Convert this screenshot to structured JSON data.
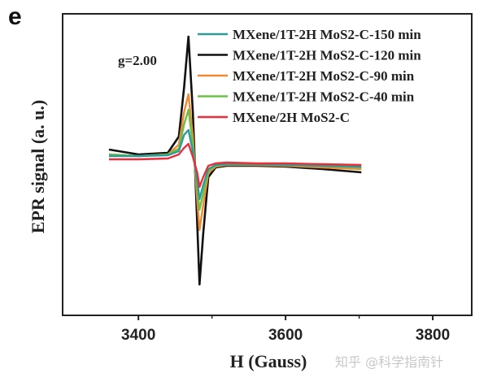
{
  "panel_label": "e",
  "watermark": "知乎 @科学指南针",
  "chart_data": {
    "type": "line",
    "title": "",
    "xlabel": "H (Gauss)",
    "ylabel": "EPR signal (a. u.)",
    "xlim": [
      3297,
      3853
    ],
    "ylim": [
      -190,
      181
    ],
    "xticks": [
      3400,
      3600,
      3800
    ],
    "xminor": [
      3500,
      3700
    ],
    "yticks_shown": false,
    "grid": false,
    "legend_position": "top-right",
    "annotation": "g=2.00",
    "x": [
      3360,
      3400,
      3440,
      3455,
      3462,
      3468,
      3474,
      3480,
      3483,
      3488,
      3495,
      3505,
      3520,
      3560,
      3600,
      3650,
      3703
    ],
    "series": [
      {
        "name": "MXene/1T-2H MoS2-C-150 min",
        "color": "#2e9a9a",
        "values": [
          6,
          6,
          7,
          12,
          32,
          38,
          12,
          -25,
          -47,
          -30,
          -10,
          -5,
          -4,
          -4,
          -5,
          -6,
          -7
        ]
      },
      {
        "name": "MXene/1T-2H MoS2-C-120 min",
        "color": "#111111",
        "values": [
          14,
          8,
          10,
          30,
          90,
          153,
          60,
          -80,
          -152,
          -90,
          -20,
          -8,
          -6,
          -6,
          -7,
          -10,
          -14
        ]
      },
      {
        "name": "MXene/1T-2H MoS2-C-90 min",
        "color": "#f08a30",
        "values": [
          8,
          6,
          8,
          20,
          60,
          82,
          30,
          -50,
          -85,
          -55,
          -15,
          -7,
          -5,
          -5,
          -6,
          -8,
          -10
        ]
      },
      {
        "name": "MXene/1T-2H MoS2-C-40 min",
        "color": "#6cc04a",
        "values": [
          8,
          6,
          8,
          15,
          45,
          63,
          20,
          -35,
          -60,
          -40,
          -12,
          -6,
          -4,
          -4,
          -5,
          -6,
          -8
        ]
      },
      {
        "name": "MXene/2H MoS2-C",
        "color": "#e8303a",
        "values": [
          2,
          2,
          3,
          8,
          16,
          21,
          5,
          -15,
          -32,
          -20,
          -6,
          -3,
          -2,
          -3,
          -3,
          -4,
          -5
        ]
      }
    ],
    "draw_order": [
      1,
      2,
      3,
      0,
      4
    ]
  }
}
